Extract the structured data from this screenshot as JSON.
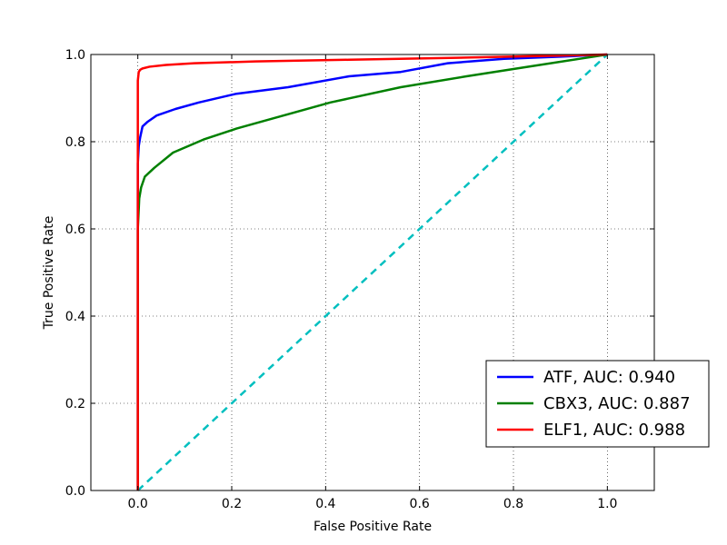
{
  "chart_data": {
    "type": "line",
    "xlabel": "False Positive Rate",
    "ylabel": "True Positive Rate",
    "xlim": [
      -0.1,
      1.1
    ],
    "ylim": [
      0.0,
      1.0
    ],
    "xticks": [
      0.0,
      0.2,
      0.4,
      0.6,
      0.8,
      1.0
    ],
    "yticks": [
      0.0,
      0.2,
      0.4,
      0.6,
      0.8,
      1.0
    ],
    "xtick_labels": [
      "0.0",
      "0.2",
      "0.4",
      "0.6",
      "0.8",
      "1.0"
    ],
    "ytick_labels": [
      "0.0",
      "0.2",
      "0.4",
      "0.6",
      "0.8",
      "1.0"
    ],
    "grid": true,
    "legend_position": "lower-right",
    "series": [
      {
        "name": "ATF, AUC: 0.940",
        "color": "#0000ff",
        "style": "solid",
        "x": [
          0.0,
          0.0,
          0.002,
          0.005,
          0.01,
          0.02,
          0.04,
          0.08,
          0.13,
          0.21,
          0.32,
          0.45,
          0.56,
          0.66,
          0.78,
          0.9,
          1.0
        ],
        "y": [
          0.0,
          0.75,
          0.79,
          0.81,
          0.835,
          0.845,
          0.86,
          0.875,
          0.89,
          0.91,
          0.925,
          0.95,
          0.96,
          0.98,
          0.99,
          0.995,
          1.0
        ]
      },
      {
        "name": "CBX3, AUC: 0.887",
        "color": "#008000",
        "style": "solid",
        "x": [
          0.0,
          0.0,
          0.003,
          0.007,
          0.015,
          0.035,
          0.075,
          0.14,
          0.21,
          0.31,
          0.41,
          0.56,
          0.7,
          0.82,
          0.94,
          1.0
        ],
        "y": [
          0.0,
          0.6,
          0.67,
          0.695,
          0.72,
          0.74,
          0.775,
          0.805,
          0.83,
          0.86,
          0.89,
          0.925,
          0.95,
          0.97,
          0.99,
          1.0
        ]
      },
      {
        "name": "ELF1, AUC: 0.988",
        "color": "#ff0000",
        "style": "solid",
        "x": [
          0.0,
          0.0,
          0.002,
          0.005,
          0.01,
          0.025,
          0.06,
          0.12,
          0.25,
          0.45,
          0.7,
          1.0
        ],
        "y": [
          0.0,
          0.94,
          0.96,
          0.965,
          0.968,
          0.972,
          0.976,
          0.98,
          0.984,
          0.988,
          0.993,
          1.0
        ]
      },
      {
        "name": "",
        "color": "#00bfbf",
        "style": "dashed",
        "x": [
          0.0,
          1.0
        ],
        "y": [
          0.0,
          1.0
        ]
      }
    ]
  },
  "colors": {
    "axes": "#000000",
    "grid": "#000000",
    "background": "#ffffff"
  }
}
